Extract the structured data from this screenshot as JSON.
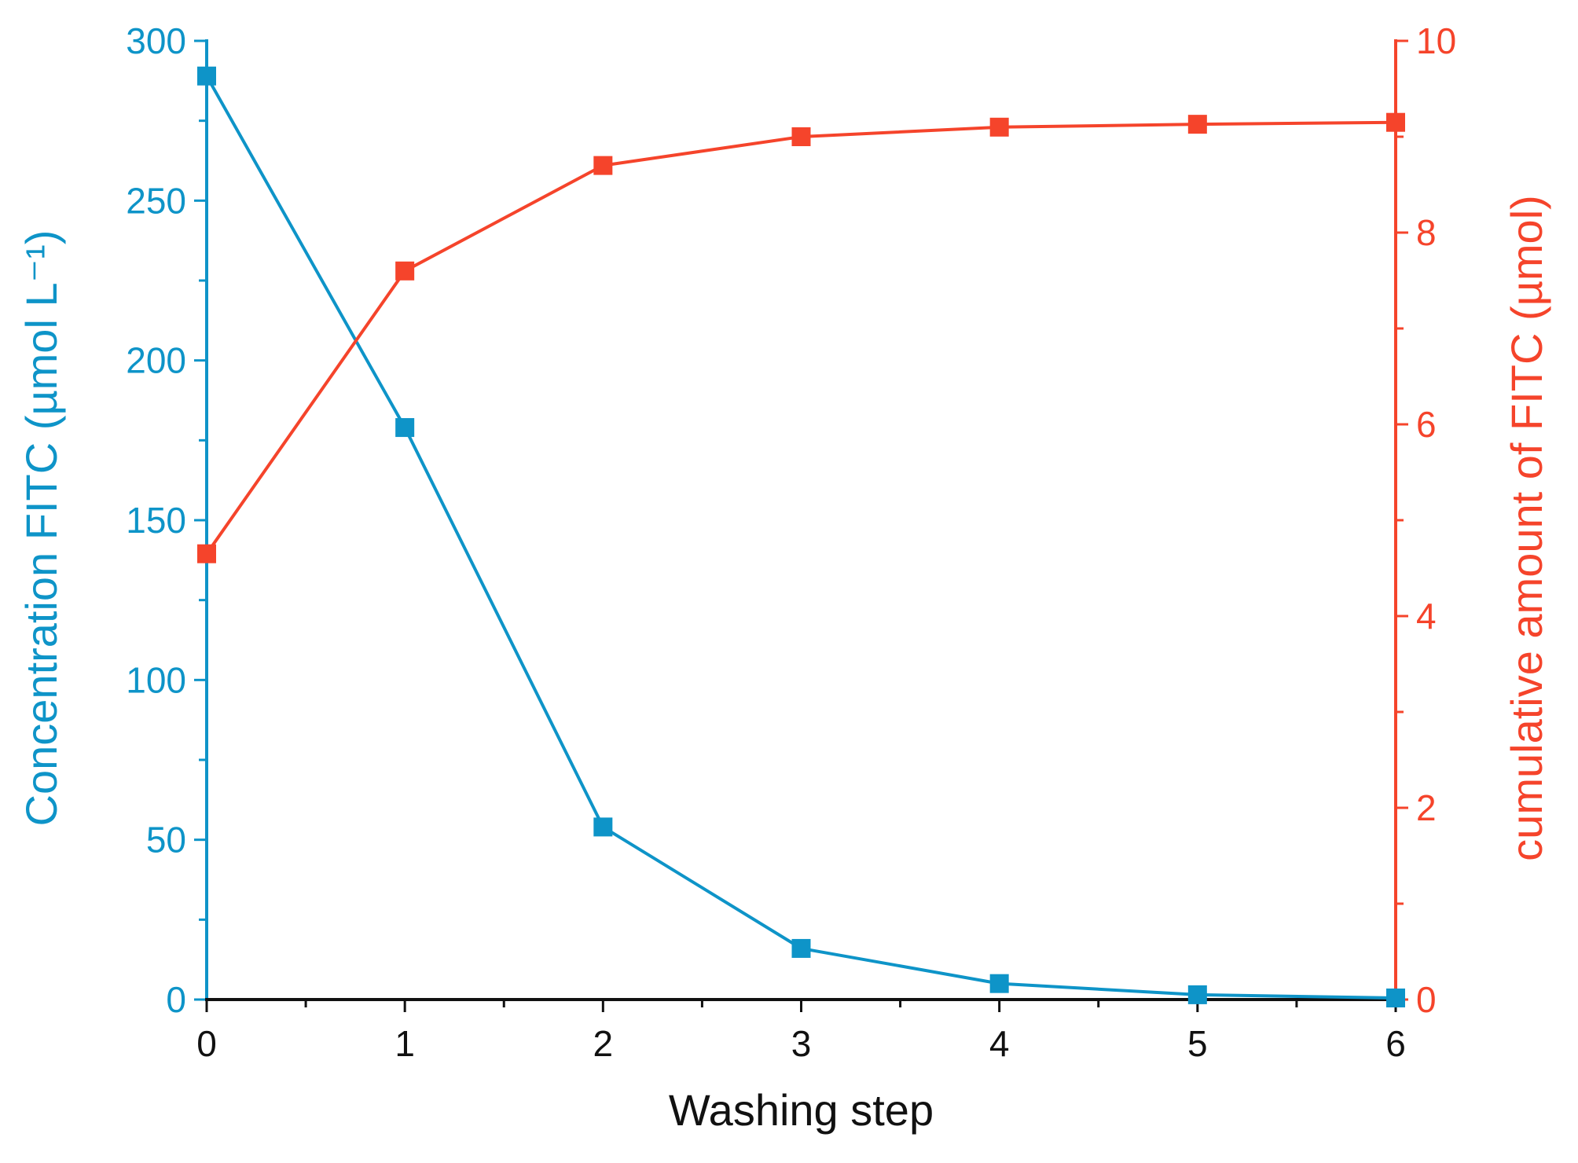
{
  "colors": {
    "left_series": "#0E94C8",
    "right_series": "#F5442B",
    "x_axis": "#111111",
    "background": "#FFFFFF"
  },
  "chart_data": {
    "type": "line",
    "title": "",
    "xlabel": "Washing step",
    "ylabel_left": "Concentration FITC (µmol L⁻¹)",
    "ylabel_right": "cumulative amount of FITC (µmol)",
    "x": [
      0,
      1,
      2,
      3,
      4,
      5,
      6
    ],
    "xlim": [
      0,
      6
    ],
    "x_ticks": [
      "0",
      "1",
      "2",
      "3",
      "4",
      "5",
      "6"
    ],
    "ylim_left": [
      0,
      300
    ],
    "y_ticks_left": [
      "0",
      "50",
      "100",
      "150",
      "200",
      "250",
      "300"
    ],
    "ylim_right": [
      0,
      10
    ],
    "y_ticks_right": [
      "0",
      "2",
      "4",
      "6",
      "8",
      "10"
    ],
    "grid": false,
    "marker": "square",
    "series": [
      {
        "axis": "left",
        "color": "#0E94C8",
        "values": [
          289,
          179,
          54,
          16,
          5,
          1.5,
          0.5
        ]
      },
      {
        "axis": "right",
        "color": "#F5442B",
        "values": [
          4.65,
          7.6,
          8.7,
          9.0,
          9.1,
          9.13,
          9.15
        ]
      }
    ]
  }
}
